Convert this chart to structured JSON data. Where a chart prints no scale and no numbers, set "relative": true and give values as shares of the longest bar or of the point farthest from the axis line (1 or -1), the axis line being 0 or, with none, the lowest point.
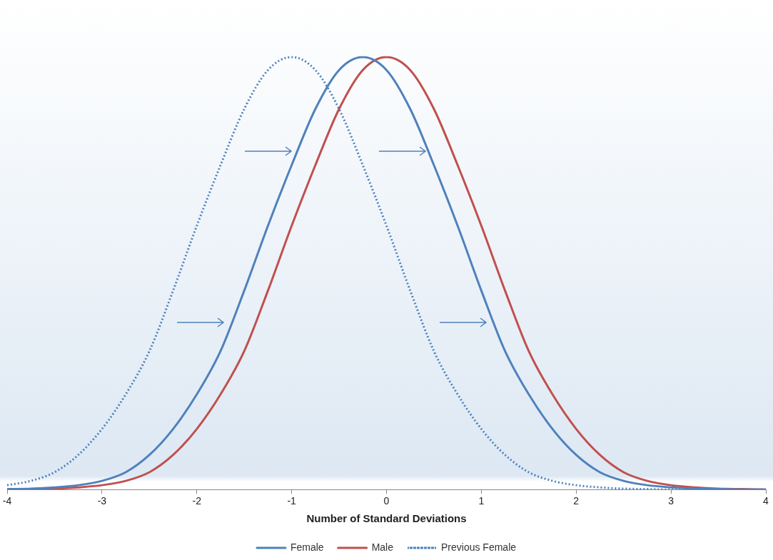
{
  "chart_data": {
    "type": "line",
    "xlabel": "Number of Standard Deviations",
    "relative": true,
    "xlim": [
      -4,
      4
    ],
    "xticks": [
      -4,
      -3,
      -2,
      -1,
      0,
      1,
      2,
      3,
      4
    ],
    "grid": false,
    "legend": "bottom",
    "marker": "none",
    "x": [
      -4,
      -3.75,
      -3.5,
      -3.25,
      -3,
      -2.75,
      -2.5,
      -2.25,
      -2,
      -1.75,
      -1.5,
      -1.25,
      -1,
      -0.75,
      -0.5,
      -0.25,
      0,
      0.25,
      0.5,
      0.75,
      1,
      1.25,
      1.5,
      1.75,
      2,
      2.25,
      2.5,
      2.75,
      3,
      3.25,
      3.5,
      3.75,
      4
    ],
    "series": [
      {
        "name": "Female",
        "color": "#4f81bd",
        "line_style": "solid",
        "values": [
          0.001,
          0.002,
          0.005,
          0.01,
          0.02,
          0.04,
          0.08,
          0.14,
          0.22,
          0.32,
          0.46,
          0.61,
          0.75,
          0.88,
          0.97,
          1,
          0.97,
          0.88,
          0.75,
          0.61,
          0.46,
          0.32,
          0.22,
          0.14,
          0.08,
          0.04,
          0.02,
          0.01,
          0.005,
          0.002,
          0.001,
          0,
          0
        ]
      },
      {
        "name": "Male",
        "color": "#c0504d",
        "line_style": "solid",
        "values": [
          0,
          0.001,
          0.002,
          0.005,
          0.01,
          0.02,
          0.04,
          0.08,
          0.14,
          0.22,
          0.32,
          0.46,
          0.61,
          0.75,
          0.88,
          0.97,
          1,
          0.97,
          0.88,
          0.75,
          0.61,
          0.46,
          0.32,
          0.22,
          0.14,
          0.08,
          0.04,
          0.02,
          0.01,
          0.005,
          0.002,
          0.001,
          0
        ]
      },
      {
        "name": "Previous Female",
        "color": "#4f81bd",
        "line_style": "dotted",
        "values": [
          0.01,
          0.02,
          0.04,
          0.08,
          0.14,
          0.22,
          0.32,
          0.46,
          0.61,
          0.75,
          0.88,
          0.97,
          1,
          0.97,
          0.88,
          0.75,
          0.61,
          0.46,
          0.32,
          0.22,
          0.14,
          0.08,
          0.04,
          0.02,
          0.01,
          0.005,
          0.002,
          0.001,
          0,
          0,
          0,
          0,
          0
        ]
      }
    ]
  }
}
